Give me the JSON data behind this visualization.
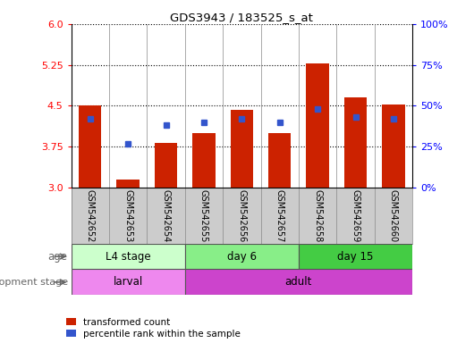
{
  "title": "GDS3943 / 183525_s_at",
  "samples": [
    "GSM542652",
    "GSM542653",
    "GSM542654",
    "GSM542655",
    "GSM542656",
    "GSM542657",
    "GSM542658",
    "GSM542659",
    "GSM542660"
  ],
  "transformed_counts": [
    4.5,
    3.15,
    3.82,
    4.0,
    4.42,
    4.0,
    5.27,
    4.65,
    4.52
  ],
  "percentile_ranks": [
    42,
    27,
    38,
    40,
    42,
    40,
    48,
    43,
    42
  ],
  "bar_bottom": 3.0,
  "ylim": [
    3.0,
    6.0
  ],
  "yticks_left": [
    3.0,
    3.75,
    4.5,
    5.25,
    6.0
  ],
  "yticks_right": [
    0,
    25,
    50,
    75,
    100
  ],
  "bar_color": "#cc2200",
  "dot_color": "#3355cc",
  "age_groups": [
    {
      "label": "L4 stage",
      "start": 0,
      "end": 3,
      "color": "#ccffcc"
    },
    {
      "label": "day 6",
      "start": 3,
      "end": 6,
      "color": "#88ee88"
    },
    {
      "label": "day 15",
      "start": 6,
      "end": 9,
      "color": "#44cc44"
    }
  ],
  "dev_groups": [
    {
      "label": "larval",
      "start": 0,
      "end": 3,
      "color": "#ee88ee"
    },
    {
      "label": "adult",
      "start": 3,
      "end": 9,
      "color": "#cc44cc"
    }
  ],
  "age_label": "age",
  "dev_label": "development stage",
  "legend_items": [
    {
      "label": "transformed count",
      "color": "#cc2200"
    },
    {
      "label": "percentile rank within the sample",
      "color": "#3355cc"
    }
  ],
  "background_color": "#ffffff",
  "plot_bg": "#ffffff",
  "xtick_bg": "#cccccc",
  "label_color": "#666666"
}
